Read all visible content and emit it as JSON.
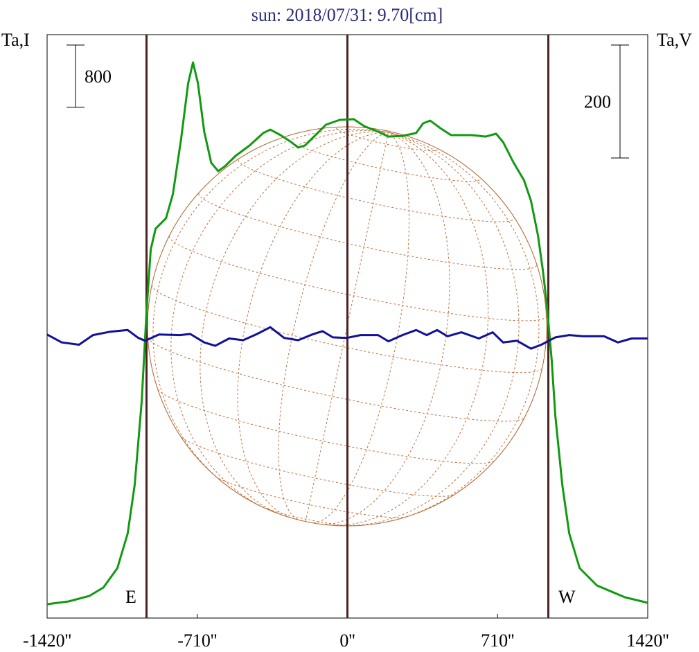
{
  "chart_data": {
    "type": "line",
    "title": "sun: 2018/07/31: 9.70[cm]",
    "ylabel": "Ta,I",
    "y2label": "Ta,V",
    "xlim": [
      -1420,
      1420
    ],
    "xticks": [
      {
        "value": -1420,
        "label": "-1420''"
      },
      {
        "value": -710,
        "label": "-710''"
      },
      {
        "value": 0,
        "label": "0''"
      },
      {
        "value": 710,
        "label": "710''"
      },
      {
        "value": 1420,
        "label": "1420''"
      }
    ],
    "ylim": [
      0,
      7500
    ],
    "y2lim": [
      -497,
      536
    ],
    "vlines": [
      -950,
      0,
      950
    ],
    "scale_bars": [
      {
        "value": 800,
        "axis": "y"
      },
      {
        "value": 200,
        "axis": "y2"
      }
    ],
    "annotations": [
      "E",
      "W"
    ],
    "series": [
      {
        "color": "#109a10",
        "axis": "y",
        "x": [
          -1420,
          -1318,
          -1220,
          -1154,
          -1088,
          -1039,
          -1006,
          -973,
          -950,
          -930,
          -907,
          -858,
          -825,
          -786,
          -753,
          -730,
          -707,
          -677,
          -644,
          -611,
          -579,
          -529,
          -463,
          -398,
          -365,
          -316,
          -266,
          -233,
          -201,
          -151,
          -102,
          -36,
          30,
          79,
          145,
          194,
          260,
          325,
          358,
          391,
          440,
          490,
          588,
          654,
          703,
          736,
          786,
          835,
          868,
          901,
          924,
          943,
          966,
          983,
          1016,
          1049,
          1098,
          1180,
          1312,
          1420
        ],
        "values": [
          178,
          214,
          285,
          392,
          641,
          1087,
          1710,
          2779,
          3937,
          4739,
          5006,
          5139,
          5451,
          6164,
          6876,
          7143,
          6876,
          6253,
          5852,
          5745,
          5808,
          5941,
          6075,
          6235,
          6279,
          6208,
          6119,
          6048,
          6075,
          6208,
          6342,
          6404,
          6413,
          6324,
          6253,
          6190,
          6199,
          6235,
          6360,
          6395,
          6297,
          6208,
          6208,
          6190,
          6226,
          6119,
          5852,
          5629,
          5362,
          4917,
          4471,
          4026,
          3313,
          2601,
          1710,
          1087,
          641,
          419,
          267,
          196
        ]
      },
      {
        "color": "#10109a",
        "axis": "y2",
        "x": [
          -1420,
          -1351,
          -1269,
          -1203,
          -1121,
          -1039,
          -989,
          -956,
          -891,
          -792,
          -743,
          -677,
          -625,
          -559,
          -493,
          -427,
          -365,
          -299,
          -233,
          -167,
          -118,
          -69,
          -3,
          62,
          145,
          194,
          260,
          325,
          375,
          424,
          473,
          539,
          621,
          687,
          736,
          802,
          868,
          917,
          983,
          1049,
          1114,
          1213,
          1279,
          1344,
          1420
        ],
        "values": [
          5,
          -9,
          -13,
          4,
          10,
          13,
          -1,
          -6,
          5,
          4,
          6,
          -9,
          -15,
          -2,
          -5,
          6,
          18,
          -1,
          -5,
          5,
          11,
          0,
          -1,
          4,
          4,
          -7,
          4,
          13,
          4,
          13,
          2,
          9,
          -2,
          9,
          -9,
          -6,
          -20,
          -13,
          0,
          4,
          2,
          2,
          -9,
          -2,
          -2
        ]
      }
    ]
  }
}
